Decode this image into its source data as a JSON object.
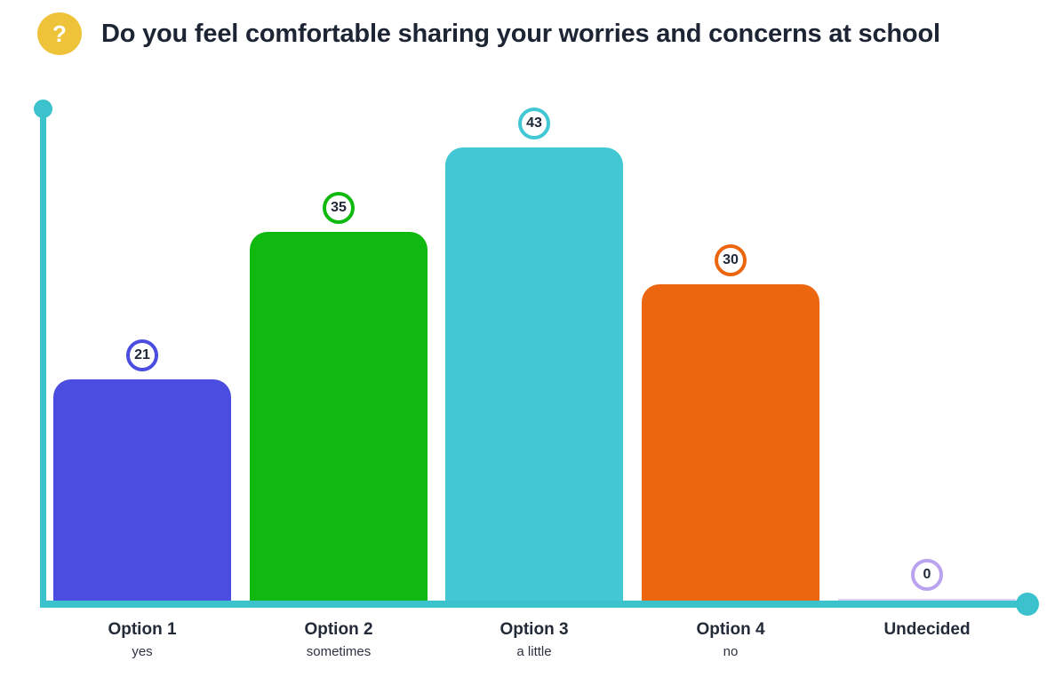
{
  "header": {
    "icon": "question-icon",
    "icon_glyph": "?",
    "icon_color": "#eec339",
    "title": "Do you feel comfortable sharing your worries and concerns at school"
  },
  "chart_data": {
    "type": "bar",
    "title": "Do you feel comfortable sharing your worries and concerns at school",
    "categories": [
      "Option 1",
      "Option 2",
      "Option 3",
      "Option 4",
      "Undecided"
    ],
    "sublabels": [
      "yes",
      "sometimes",
      "a little",
      "no",
      ""
    ],
    "values": [
      21,
      35,
      43,
      30,
      0
    ],
    "bar_colors": [
      "#4a4de0",
      "#10b910",
      "#41c8d4",
      "#ec660f",
      "#b9a3ef"
    ],
    "axis_color": "#3bc2cd",
    "xlabel": "",
    "ylabel": "",
    "ylim": [
      0,
      47
    ],
    "grid": false,
    "legend": "none",
    "data_labels": "circled above bars"
  }
}
